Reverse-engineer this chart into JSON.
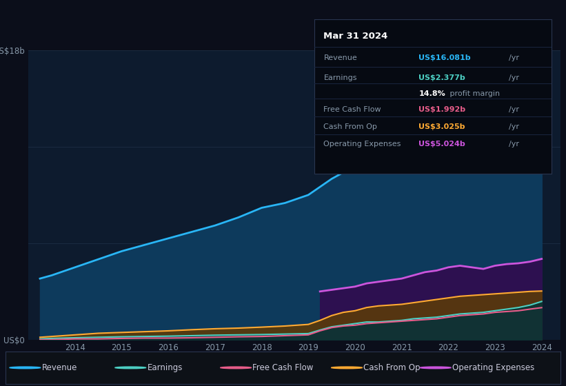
{
  "bg_color": "#0b0e1a",
  "plot_bg_color": "#0d1b2e",
  "grid_color": "#1a2a40",
  "years": [
    2013.25,
    2013.5,
    2014,
    2014.5,
    2015,
    2015.5,
    2016,
    2016.5,
    2017,
    2017.5,
    2018,
    2018.5,
    2019,
    2019.25,
    2019.5,
    2019.75,
    2020,
    2020.25,
    2020.5,
    2020.75,
    2021,
    2021.25,
    2021.5,
    2021.75,
    2022,
    2022.25,
    2022.5,
    2022.75,
    2023,
    2023.25,
    2023.5,
    2023.75,
    2024
  ],
  "revenue": [
    3.8,
    4.0,
    4.5,
    5.0,
    5.5,
    5.9,
    6.3,
    6.7,
    7.1,
    7.6,
    8.2,
    8.5,
    9.0,
    9.5,
    10.0,
    10.4,
    10.8,
    11.3,
    11.7,
    12.0,
    12.3,
    12.6,
    12.9,
    13.2,
    13.5,
    13.9,
    14.3,
    14.7,
    15.0,
    15.3,
    15.6,
    15.85,
    16.081
  ],
  "earnings": [
    0.05,
    0.08,
    0.12,
    0.15,
    0.18,
    0.2,
    0.22,
    0.25,
    0.28,
    0.3,
    0.32,
    0.35,
    0.38,
    0.6,
    0.8,
    0.9,
    1.0,
    1.1,
    1.1,
    1.15,
    1.2,
    1.3,
    1.35,
    1.4,
    1.5,
    1.6,
    1.65,
    1.7,
    1.8,
    1.9,
    2.0,
    2.15,
    2.377
  ],
  "fcf": [
    0.0,
    0.0,
    0.05,
    0.05,
    0.08,
    0.1,
    0.1,
    0.12,
    0.15,
    0.18,
    0.2,
    0.25,
    0.3,
    0.55,
    0.75,
    0.85,
    0.9,
    1.0,
    1.05,
    1.1,
    1.15,
    1.2,
    1.25,
    1.3,
    1.4,
    1.5,
    1.55,
    1.6,
    1.7,
    1.75,
    1.8,
    1.9,
    1.992
  ],
  "cashfromop": [
    0.15,
    0.2,
    0.3,
    0.4,
    0.45,
    0.5,
    0.55,
    0.62,
    0.68,
    0.72,
    0.78,
    0.85,
    0.95,
    1.2,
    1.5,
    1.7,
    1.8,
    2.0,
    2.1,
    2.15,
    2.2,
    2.3,
    2.4,
    2.5,
    2.6,
    2.7,
    2.75,
    2.8,
    2.85,
    2.9,
    2.95,
    3.0,
    3.025
  ],
  "opex_years": [
    2019.25,
    2019.5,
    2019.75,
    2020,
    2020.25,
    2020.5,
    2020.75,
    2021,
    2021.25,
    2021.5,
    2021.75,
    2022,
    2022.25,
    2022.5,
    2022.75,
    2023,
    2023.25,
    2023.5,
    2023.75,
    2024
  ],
  "opex": [
    3.0,
    3.1,
    3.2,
    3.3,
    3.5,
    3.6,
    3.7,
    3.8,
    4.0,
    4.2,
    4.3,
    4.5,
    4.6,
    4.5,
    4.4,
    4.6,
    4.7,
    4.75,
    4.85,
    5.024
  ],
  "revenue_color": "#29b6f6",
  "earnings_color": "#4dd0c4",
  "fcf_color": "#e85d8a",
  "cashfromop_color": "#ffaa33",
  "opex_color": "#cc55dd",
  "revenue_fill": "#0d3a5c",
  "earnings_fill": "#0a3535",
  "fcf_fill": "#5a1530",
  "cashfromop_fill": "#5a3a0a",
  "opex_fill": "#2d1050",
  "ylim": [
    0,
    18
  ],
  "xlim_min": 2013.0,
  "xlim_max": 2024.4,
  "xticks": [
    2014,
    2015,
    2016,
    2017,
    2018,
    2019,
    2020,
    2021,
    2022,
    2023,
    2024
  ],
  "info_box": {
    "date": "Mar 31 2024",
    "revenue_label": "Revenue",
    "revenue_val": "US$16.081b",
    "revenue_val_color": "#29b6f6",
    "earnings_label": "Earnings",
    "earnings_val": "US$2.377b",
    "earnings_val_color": "#4dd0c4",
    "margin_label": "",
    "margin_text": "14.8%",
    "margin_suffix": " profit margin",
    "fcf_label": "Free Cash Flow",
    "fcf_val": "US$1.992b",
    "fcf_val_color": "#e85d8a",
    "cashop_label": "Cash From Op",
    "cashop_val": "US$3.025b",
    "cashop_val_color": "#ffaa33",
    "opex_label": "Operating Expenses",
    "opex_val": "US$5.024b",
    "opex_val_color": "#cc55dd"
  },
  "legend_items": [
    {
      "label": "Revenue",
      "color": "#29b6f6"
    },
    {
      "label": "Earnings",
      "color": "#4dd0c4"
    },
    {
      "label": "Free Cash Flow",
      "color": "#e85d8a"
    },
    {
      "label": "Cash From Op",
      "color": "#ffaa33"
    },
    {
      "label": "Operating Expenses",
      "color": "#cc55dd"
    }
  ]
}
